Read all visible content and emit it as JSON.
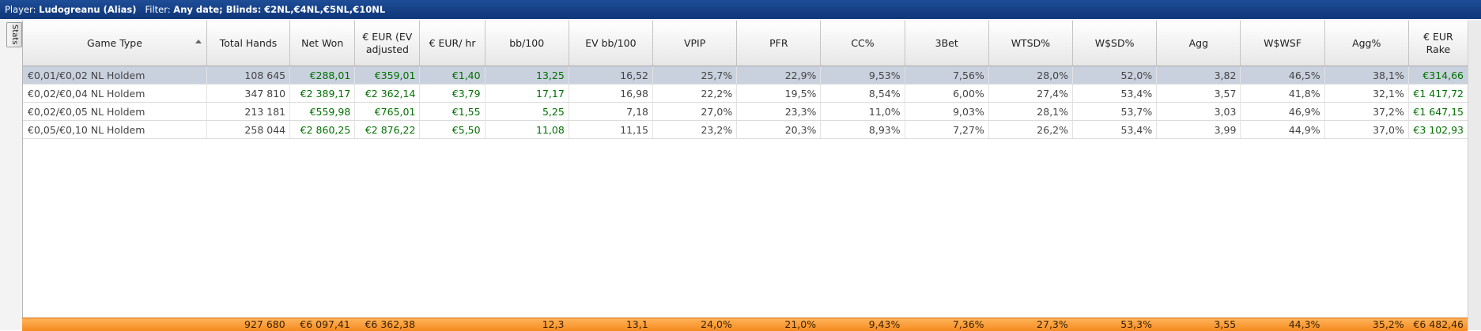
{
  "titlebar": {
    "player_label": "Player:",
    "player_value": "Ludogreanu (Alias)",
    "filter_label": "Filter:",
    "filter_value": "Any date; Blinds: €2NL,€4NL,€5NL,€10NL"
  },
  "side_tab": {
    "label": "Stats"
  },
  "columns": [
    {
      "key": "game",
      "label": "Game Type",
      "sorted": "asc"
    },
    {
      "key": "hands",
      "label": "Total Hands"
    },
    {
      "key": "net",
      "label": "Net Won"
    },
    {
      "key": "ev",
      "label": "€ EUR (EV adjusted"
    },
    {
      "key": "hr",
      "label": "€ EUR/ hr"
    },
    {
      "key": "bb",
      "label": "bb/100"
    },
    {
      "key": "evbb",
      "label": "EV bb/100"
    },
    {
      "key": "vpip",
      "label": "VPIP"
    },
    {
      "key": "pfr",
      "label": "PFR"
    },
    {
      "key": "cc",
      "label": "CC%"
    },
    {
      "key": "3bet",
      "label": "3Bet"
    },
    {
      "key": "wtsd",
      "label": "WTSD%"
    },
    {
      "key": "wsd",
      "label": "W$SD%"
    },
    {
      "key": "agg",
      "label": "Agg"
    },
    {
      "key": "wwsf",
      "label": "W$WSF"
    },
    {
      "key": "aggp",
      "label": "Agg%"
    },
    {
      "key": "rake",
      "label": "€ EUR Rake"
    }
  ],
  "rows": [
    {
      "selected": true,
      "cells": [
        "€0,01/€0,02 NL Holdem",
        "108 645",
        "€288,01",
        "€359,01",
        "€1,40",
        "13,25",
        "16,52",
        "25,7%",
        "22,9%",
        "9,53%",
        "7,56%",
        "28,0%",
        "52,0%",
        "3,82",
        "46,5%",
        "38,1%",
        "€314,66"
      ]
    },
    {
      "selected": false,
      "cells": [
        "€0,02/€0,04 NL Holdem",
        "347 810",
        "€2 389,17",
        "€2 362,14",
        "€3,79",
        "17,17",
        "16,98",
        "22,2%",
        "19,5%",
        "8,54%",
        "6,00%",
        "27,4%",
        "53,4%",
        "3,57",
        "41,8%",
        "32,1%",
        "€1 417,72"
      ]
    },
    {
      "selected": false,
      "cells": [
        "€0,02/€0,05 NL Holdem",
        "213 181",
        "€559,98",
        "€765,01",
        "€1,55",
        "5,25",
        "7,18",
        "27,0%",
        "23,3%",
        "11,0%",
        "9,03%",
        "28,1%",
        "53,7%",
        "3,03",
        "46,9%",
        "37,2%",
        "€1 647,15"
      ]
    },
    {
      "selected": false,
      "cells": [
        "€0,05/€0,10 NL Holdem",
        "258 044",
        "€2 860,25",
        "€2 876,22",
        "€5,50",
        "11,08",
        "11,15",
        "23,2%",
        "20,3%",
        "8,93%",
        "7,27%",
        "26,2%",
        "53,4%",
        "3,99",
        "44,9%",
        "37,0%",
        "€3 102,93"
      ]
    }
  ],
  "positive_columns": [
    2,
    3,
    4,
    5,
    16
  ],
  "totals": [
    "",
    "927 680",
    "€6 097,41",
    "€6 362,38",
    "",
    "12,3",
    "13,1",
    "24,0%",
    "21,0%",
    "9,43%",
    "7,36%",
    "27,3%",
    "53,3%",
    "3,55",
    "44,3%",
    "35,2%",
    "€6 482,46"
  ],
  "colors": {
    "positive": "#007000",
    "selected_row": "#c9d1de",
    "totals_bar": "#f58a1f",
    "title_bar": "#0f3679"
  }
}
